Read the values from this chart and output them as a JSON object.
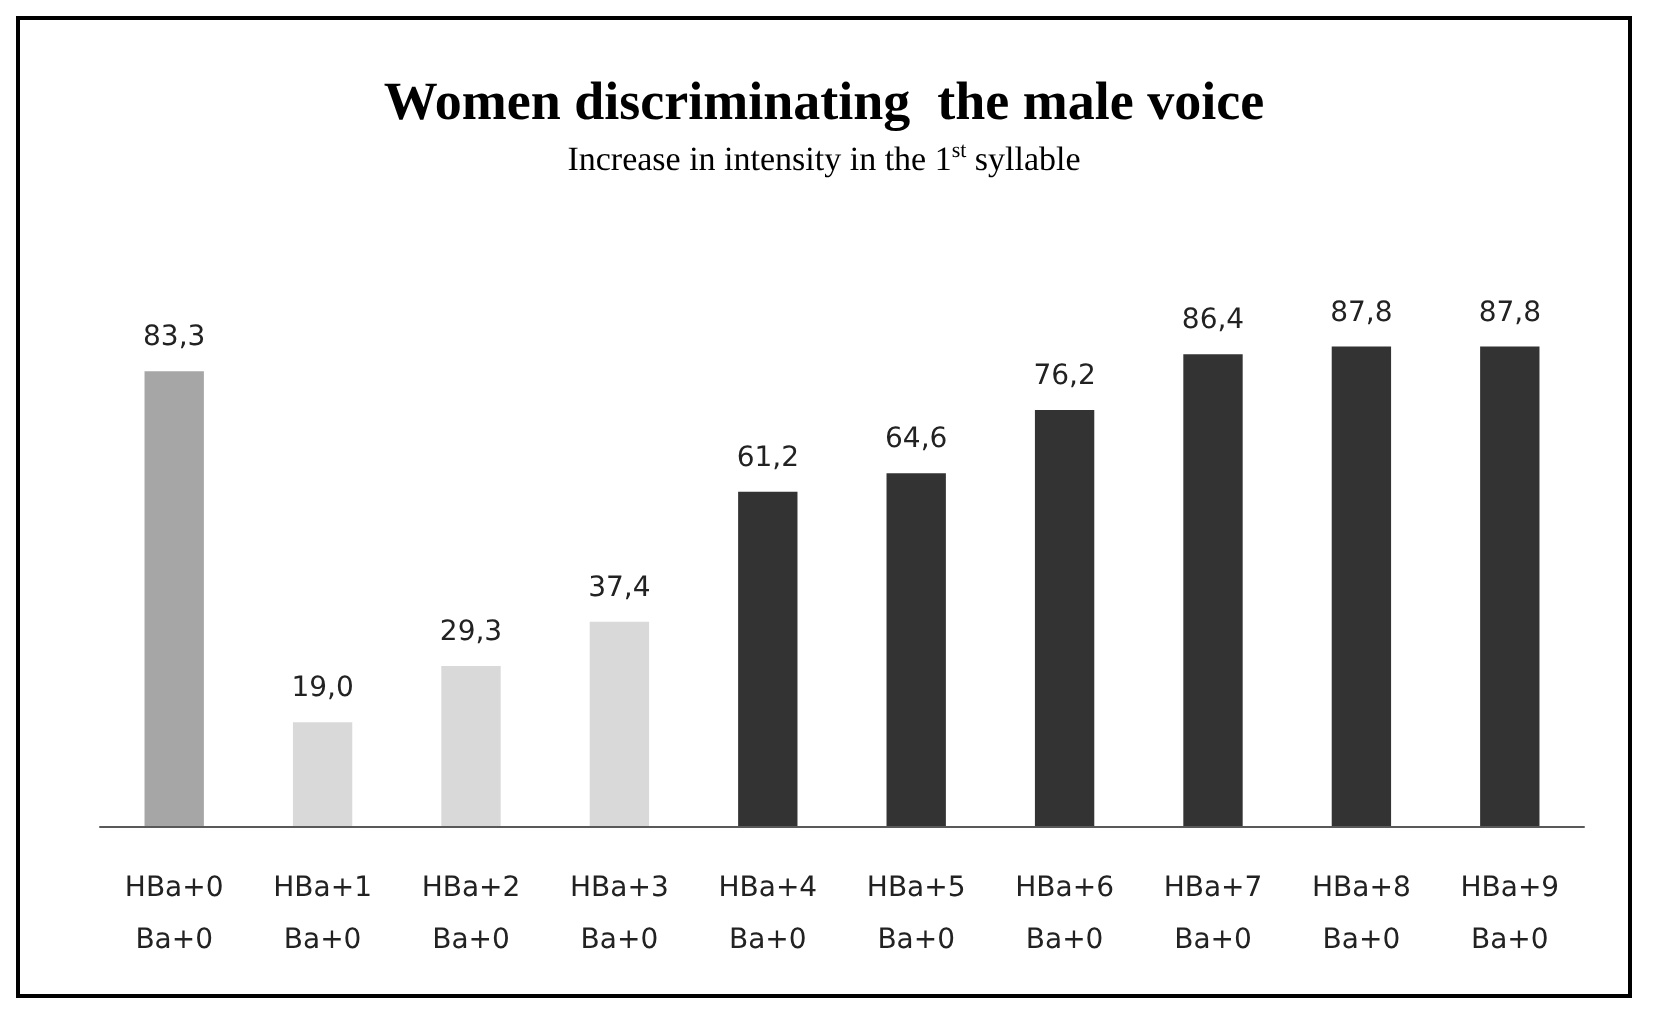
{
  "chart_data": {
    "type": "bar",
    "title": "Women discriminating  the male voice",
    "subtitle": "Increase in intensity in the 1$^{st}$ syllable",
    "categories": [
      "HBa+0\nBa+0",
      "HBa+1\nBa+0",
      "HBa+2\nBa+0",
      "HBa+3\nBa+0",
      "HBa+4\nBa+0",
      "HBa+5\nBa+0",
      "HBa+6\nBa+0",
      "HBa+7\nBa+0",
      "HBa+8\nBa+0",
      "HBa+9\nBa+0"
    ],
    "values": [
      83.3,
      19.0,
      29.3,
      37.4,
      61.2,
      64.6,
      76.2,
      86.4,
      87.8,
      87.8
    ],
    "value_labels": [
      "83,3",
      "19,0",
      "29,3",
      "37,4",
      "61,2",
      "64,6",
      "76,2",
      "86,4",
      "87,8",
      "87,8"
    ],
    "colors": [
      "#a6a6a6",
      "#d9d9d9",
      "#d9d9d9",
      "#d9d9d9",
      "#333333",
      "#333333",
      "#333333",
      "#333333",
      "#333333",
      "#333333"
    ]
  }
}
